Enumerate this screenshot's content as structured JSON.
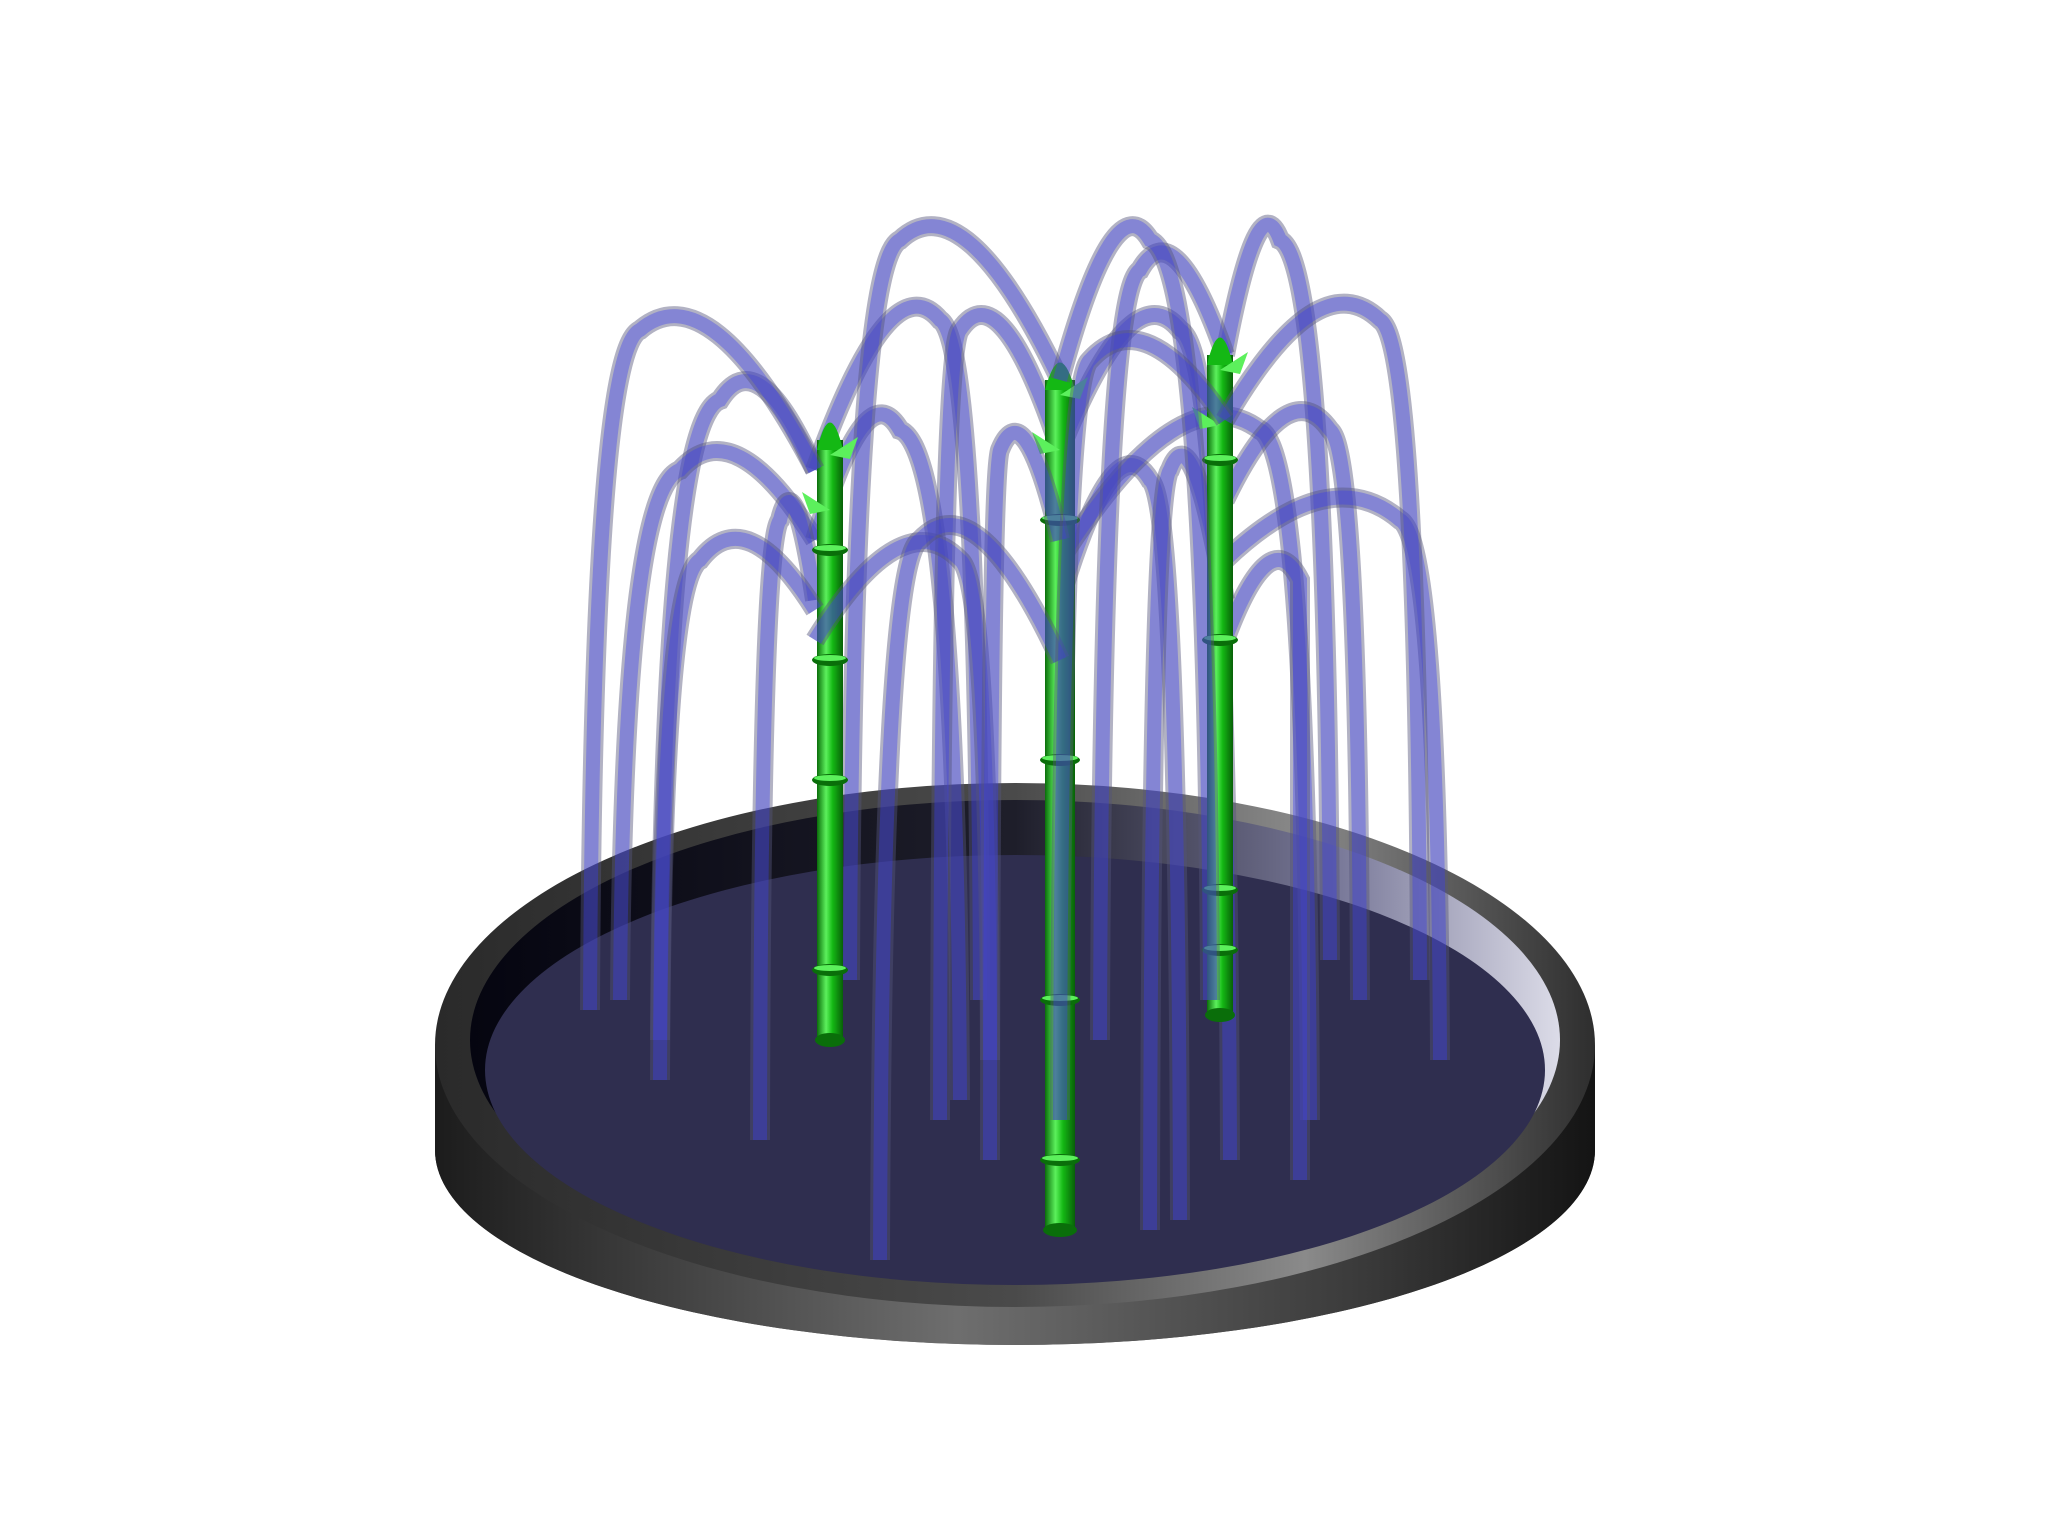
{
  "scene": {
    "subject": "bamboo-fountain-render",
    "colors": {
      "background": "#ffffff",
      "basin_dark": "#1a1a1a",
      "basin_light": "#6e6e6e",
      "water_surface": "#2f2e4f",
      "water_jet": "#3a3cf0",
      "water_jet_edge": "#55557a",
      "bamboo": "#14b814",
      "bamboo_dark": "#0a6e0a",
      "bamboo_light": "#5cf05c"
    }
  }
}
